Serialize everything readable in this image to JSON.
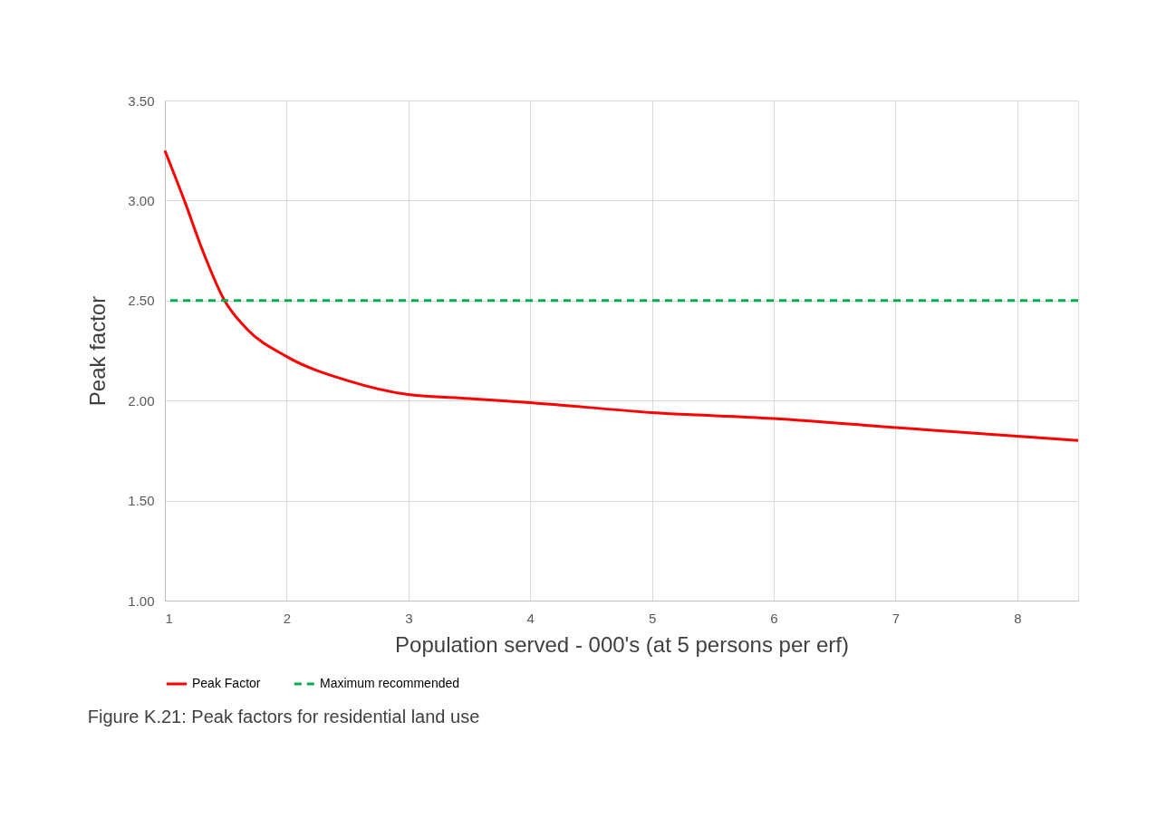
{
  "chart_data": {
    "type": "line",
    "ylabel": "Peak factor",
    "xlabel": "Population served - 000's (at 5 persons per erf)",
    "x": [
      1,
      1.16,
      1.31,
      1.49,
      1.67,
      2,
      2.5,
      3,
      3.5,
      4,
      5,
      6,
      7,
      8.5
    ],
    "series": [
      {
        "name": "Peak Factor",
        "color": "#ff0000",
        "values": [
          3.25,
          3.0,
          2.75,
          2.5,
          2.36,
          2.22,
          2.1,
          2.03,
          2.01,
          1.99,
          1.94,
          1.91,
          1.865,
          1.8
        ]
      }
    ],
    "ref_lines": [
      {
        "axis": "y",
        "value": 2.5,
        "label": "Maximum recommended",
        "color": "#00b050",
        "line_style": "dashed"
      }
    ],
    "xlim": [
      1,
      8.5
    ],
    "xticks": [
      1,
      2,
      3,
      4,
      5,
      6,
      7,
      8
    ],
    "ylim": [
      1.0,
      3.5
    ],
    "yticks": [
      {
        "value": 1.0,
        "label": "1.00"
      },
      {
        "value": 1.5,
        "label": "1.50"
      },
      {
        "value": 2.0,
        "label": "2.00"
      },
      {
        "value": 2.5,
        "label": "2.50"
      },
      {
        "value": 3.0,
        "label": "3.00"
      },
      {
        "value": 3.5,
        "label": "3.50"
      }
    ],
    "grid": true,
    "legend": "bottom",
    "line_style": "solid",
    "marker": "none",
    "annotations": [
      "Figure K.21: Peak factors for residential land use"
    ]
  }
}
